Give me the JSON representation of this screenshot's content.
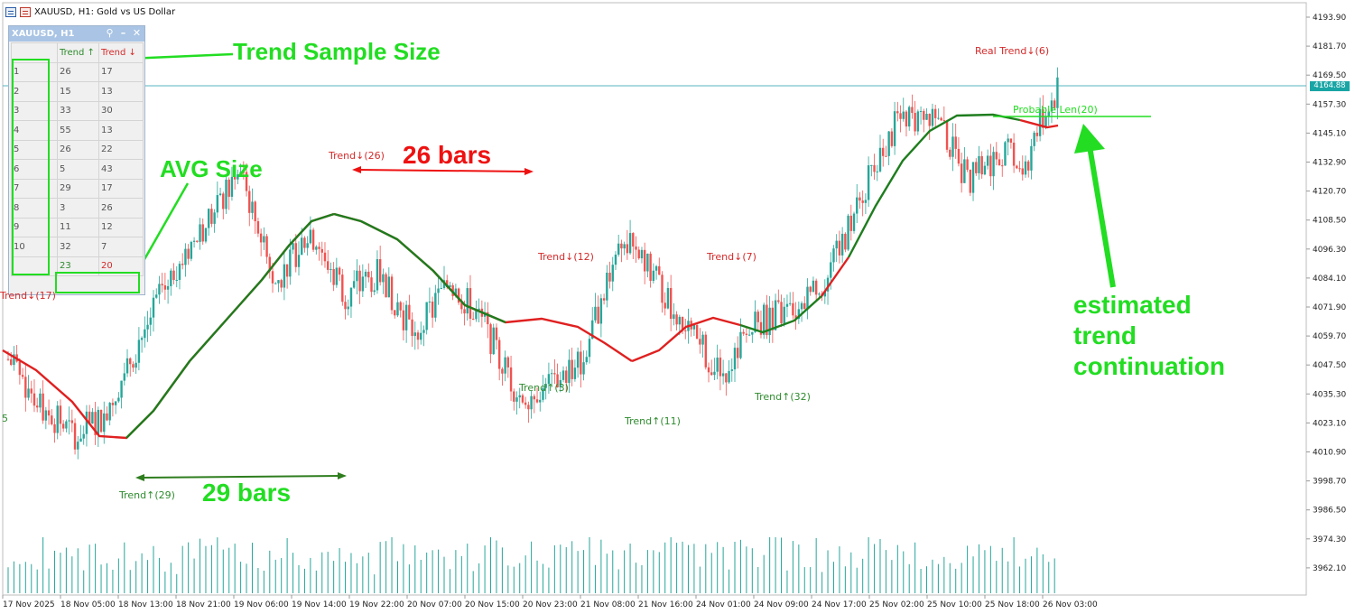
{
  "window": {
    "title": "XAUUSD, H1:  Gold vs US Dollar"
  },
  "price_axis": {
    "ticks": [
      "4193.90",
      "4181.70",
      "4169.50",
      "4157.30",
      "4145.10",
      "4132.90",
      "4120.70",
      "4108.50",
      "4096.30",
      "4084.10",
      "4071.90",
      "4059.70",
      "4047.50",
      "4035.30",
      "4023.10",
      "4010.90",
      "3998.70",
      "3986.50",
      "3974.30",
      "3962.10"
    ],
    "current_price": "4164.88"
  },
  "time_axis": {
    "ticks": [
      "17 Nov 2025",
      "18 Nov 05:00",
      "18 Nov 13:00",
      "18 Nov 21:00",
      "19 Nov 06:00",
      "19 Nov 14:00",
      "19 Nov 22:00",
      "20 Nov 07:00",
      "20 Nov 15:00",
      "20 Nov 23:00",
      "21 Nov 08:00",
      "21 Nov 16:00",
      "24 Nov 01:00",
      "24 Nov 09:00",
      "24 Nov 17:00",
      "25 Nov 02:00",
      "25 Nov 10:00",
      "25 Nov 18:00",
      "26 Nov 03:00"
    ]
  },
  "panel": {
    "title": "XAUUSD, H1",
    "header_up": "Trend ↑",
    "header_down": "Trend ↓",
    "rows": [
      {
        "n": "1",
        "up": "26",
        "down": "17"
      },
      {
        "n": "2",
        "up": "15",
        "down": "13"
      },
      {
        "n": "3",
        "up": "33",
        "down": "30"
      },
      {
        "n": "4",
        "up": "55",
        "down": "13"
      },
      {
        "n": "5",
        "up": "26",
        "down": "22"
      },
      {
        "n": "6",
        "up": "5",
        "down": "43"
      },
      {
        "n": "7",
        "up": "29",
        "down": "17"
      },
      {
        "n": "8",
        "up": "3",
        "down": "26"
      },
      {
        "n": "9",
        "up": "11",
        "down": "12"
      },
      {
        "n": "10",
        "up": "32",
        "down": "7"
      }
    ],
    "avg": {
      "up": "23",
      "down": "20"
    }
  },
  "chart_labels": {
    "trend_down_17": "Trend↓(17)",
    "trend_down_26": "Trend↓(26)",
    "trend_down_12": "Trend↓(12)",
    "trend_down_7": "Trend↓(7)",
    "real_trend": "Real Trend↓(6)",
    "probable_len": "Probable Len(20)",
    "trend_up_29": "Trend↑(29)",
    "trend_up_3": "Trend↑(3)",
    "trend_up_11": "Trend↑(11)",
    "trend_up_32": "Trend↑(32)",
    "edge_5": "5"
  },
  "annotations": {
    "sample_size": "Trend Sample Size",
    "avg_size": "AVG Size",
    "bars_26": "26 bars",
    "bars_29": "29 bars",
    "estimated_1": "estimated",
    "estimated_2": "trend",
    "estimated_3": "continuation"
  },
  "colors": {
    "up": "#26a69a",
    "down": "#ef5350",
    "trend_green": "#1e7d1e",
    "trend_red": "#e02020",
    "annotation_green": "#22dd22",
    "annotation_red": "#ee1111"
  }
}
